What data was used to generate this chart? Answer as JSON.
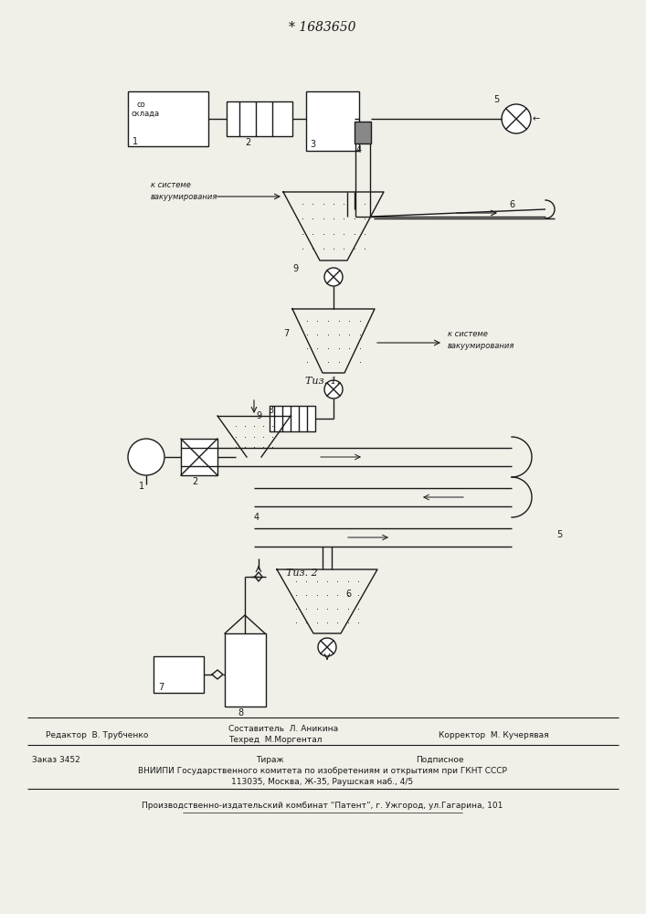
{
  "title": "* 1683650",
  "background_color": "#f0efe8",
  "line_color": "#1a1a1a",
  "fig1_label": "Τиз. 1.",
  "fig2_label": "Τиз. 2",
  "text_k_sys1": "к системе\nвакуумирования",
  "text_k_sys2": "к системе\nвакуумирования",
  "text_so_sklada": "со\nсклада",
  "footer_editor": "Редактор  В. Трубченко",
  "footer_sostavitel": "Составитель  Л. Аникина",
  "footer_tehred": "Техред  М.Моргентал",
  "footer_korrektor": "Корректор  М. Кучерявая",
  "footer_zakaz": "Заказ 3452",
  "footer_tirazh": "Тираж",
  "footer_podpisnoe": "Подписное",
  "footer_vnipi": "ВНИИПИ Государственного комитета по изобретениям и открытиям при ГКНТ СССР",
  "footer_address": "113035, Москва, Ж-35, Раушская наб., 4/5",
  "footer_kombinat": "Производственно-издательский комбинат “Патент”, г. Ужгород, ул.Гагарина, 101"
}
